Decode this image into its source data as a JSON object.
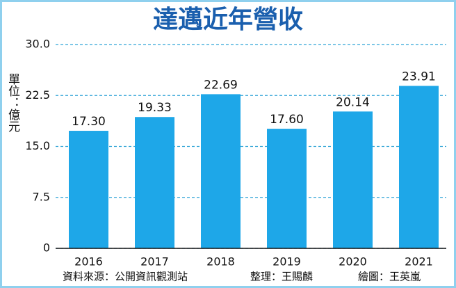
{
  "chart_data": {
    "type": "bar",
    "title": "達邁近年營收",
    "y_label": "單位：億元",
    "categories": [
      "2016",
      "2017",
      "2018",
      "2019",
      "2020",
      "2021"
    ],
    "values": [
      17.3,
      19.33,
      22.69,
      17.6,
      20.14,
      23.91
    ],
    "value_labels": [
      "17.30",
      "19.33",
      "22.69",
      "17.60",
      "20.14",
      "23.91"
    ],
    "color": "#1ea7e8",
    "ylim": [
      0,
      30
    ],
    "yticks": [
      0,
      7.5,
      {
        "value": 15,
        "label": "15.0"
      },
      {
        "value": 22.5,
        "label": "22.5"
      },
      {
        "value": 30,
        "label": "30.0"
      }
    ],
    "grid": true,
    "notes": [
      "資料來源：公開資訊觀測站",
      "整理：王賜麟",
      "繪圖：王英嵐"
    ]
  }
}
